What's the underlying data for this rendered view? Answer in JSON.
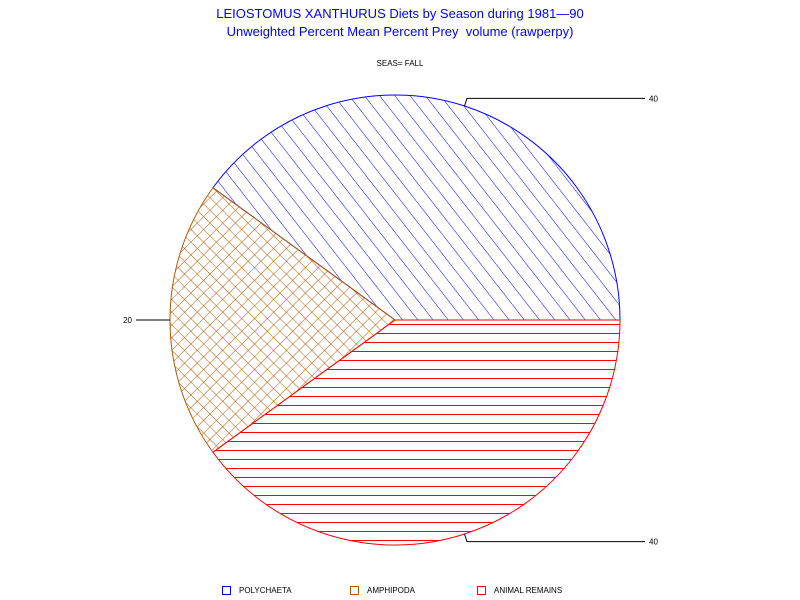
{
  "chart_data": {
    "type": "pie",
    "title": "LEIOSTOMUS XANTHURUS Diets by Season during 1981—90",
    "subtitle": "Unweighted Percent Mean Percent Prey  volume (rawperpy)",
    "panel_label": "SEAS= FALL",
    "slices": [
      {
        "label": "POLYCHAETA",
        "value": 40,
        "value_label": "40",
        "color": "#0000ff",
        "pattern": "diagonal-hatch"
      },
      {
        "label": "AMPHIPODA",
        "value": 20,
        "value_label": "20",
        "color": "#b35900",
        "pattern": "crosshatch"
      },
      {
        "label": "ANIMAL REMAINS",
        "value": 40,
        "value_label": "40",
        "color": "#ff0000",
        "pattern": "horizontal-lines"
      }
    ],
    "legend_position": "bottom"
  }
}
